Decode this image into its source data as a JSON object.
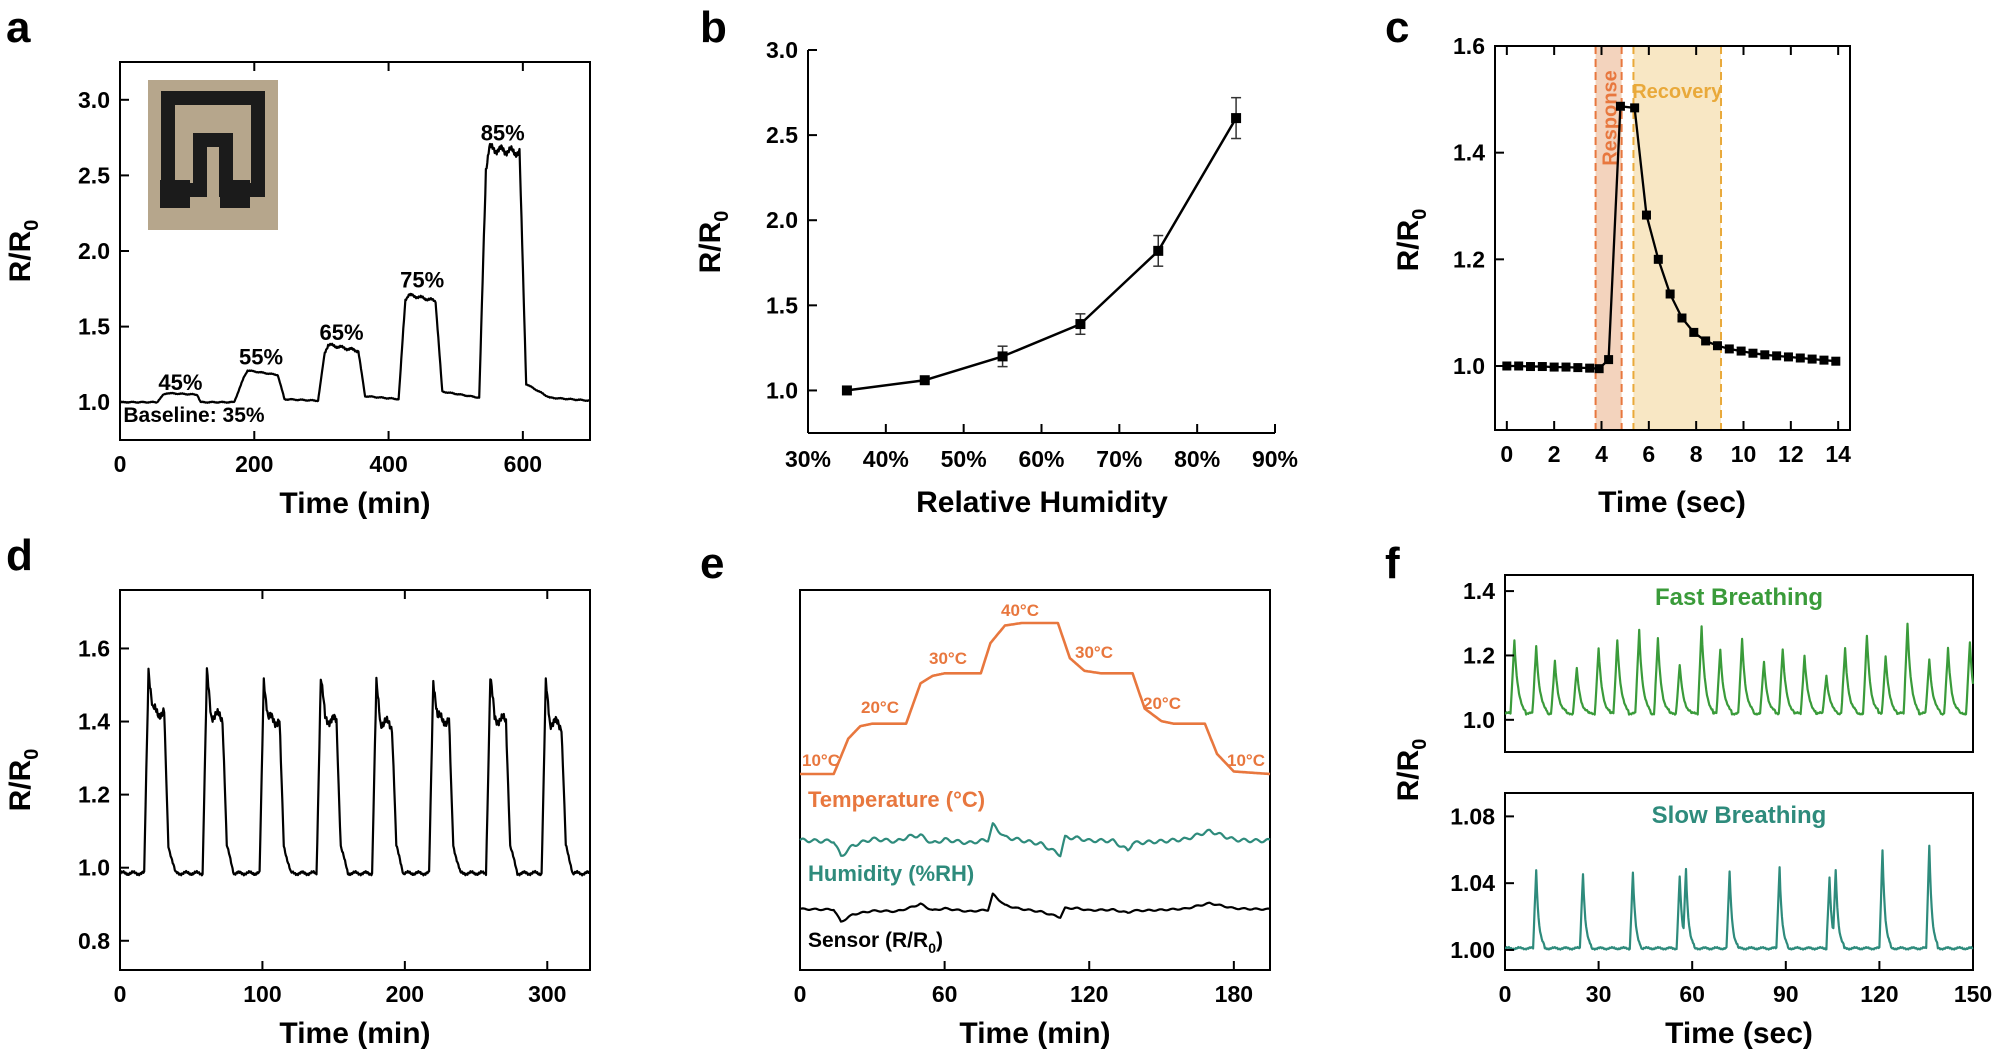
{
  "figure": {
    "panel_labels": [
      "a",
      "b",
      "c",
      "d",
      "e",
      "f"
    ]
  },
  "chart_data": [
    {
      "panel": "a",
      "type": "line",
      "xlabel": "Time (min)",
      "ylabel_main": "R/R",
      "ylabel_sub": "0",
      "xlim": [
        0,
        700
      ],
      "ylim": [
        0.75,
        3.25
      ],
      "xticks": [
        0,
        200,
        400,
        600
      ],
      "yticks": [
        1.0,
        1.5,
        2.0,
        2.5,
        3.0
      ],
      "series": [
        {
          "name": "R/R0",
          "x": [
            0,
            55,
            65,
            70,
            115,
            120,
            170,
            185,
            190,
            235,
            245,
            295,
            305,
            310,
            355,
            365,
            415,
            425,
            430,
            470,
            480,
            535,
            545,
            550,
            595,
            605,
            640,
            700
          ],
          "y": [
            1.0,
            1.0,
            1.05,
            1.06,
            1.05,
            1.0,
            1.0,
            1.17,
            1.21,
            1.18,
            1.02,
            1.01,
            1.33,
            1.38,
            1.34,
            1.04,
            1.02,
            1.68,
            1.71,
            1.67,
            1.07,
            1.03,
            2.55,
            2.68,
            2.65,
            1.12,
            1.03,
            1.01
          ]
        }
      ],
      "annotations": [
        {
          "text": "45%",
          "x": 90,
          "y": 1.08
        },
        {
          "text": "55%",
          "x": 210,
          "y": 1.25
        },
        {
          "text": "65%",
          "x": 330,
          "y": 1.41
        },
        {
          "text": "75%",
          "x": 450,
          "y": 1.76
        },
        {
          "text": "85%",
          "x": 570,
          "y": 2.73
        },
        {
          "text": "Baseline: 35%",
          "x": 5,
          "y": 0.87
        }
      ],
      "inset": "photo of black serpentine printed sensor on paper"
    },
    {
      "panel": "b",
      "type": "line",
      "xlabel": "Relative Humidity",
      "ylabel_main": "R/R",
      "ylabel_sub": "0",
      "xlim": [
        30,
        90
      ],
      "ylim": [
        0.75,
        3.0
      ],
      "xtick_labels": [
        "30%",
        "40%",
        "50%",
        "60%",
        "70%",
        "80%",
        "90%"
      ],
      "yticks": [
        1.0,
        1.5,
        2.0,
        2.5,
        3.0
      ],
      "series": [
        {
          "name": "R/R0",
          "x": [
            35,
            45,
            55,
            65,
            75,
            85
          ],
          "y": [
            1.0,
            1.06,
            1.2,
            1.39,
            1.82,
            2.6
          ],
          "error": [
            0,
            0,
            0.06,
            0.06,
            0.09,
            0.12
          ]
        }
      ]
    },
    {
      "panel": "c",
      "type": "line",
      "xlabel": "Time (sec)",
      "ylabel_main": "R/R",
      "ylabel_sub": "0",
      "xlim": [
        -0.5,
        14.5
      ],
      "ylim": [
        0.88,
        1.6
      ],
      "xticks": [
        0,
        2,
        4,
        6,
        8,
        10,
        12,
        14
      ],
      "yticks": [
        1.0,
        1.2,
        1.4,
        1.6
      ],
      "series": [
        {
          "name": "R/R0",
          "x": [
            0,
            0.5,
            1.0,
            1.5,
            2.0,
            2.5,
            3.0,
            3.5,
            3.9,
            4.3,
            4.8,
            5.4,
            5.9,
            6.4,
            6.9,
            7.4,
            7.9,
            8.4,
            8.9,
            9.4,
            9.9,
            10.4,
            10.9,
            11.4,
            11.9,
            12.4,
            12.9,
            13.4,
            13.9
          ],
          "y": [
            1.0,
            1.0,
            0.999,
            0.999,
            0.998,
            0.998,
            0.997,
            0.996,
            0.995,
            1.012,
            1.487,
            1.484,
            1.283,
            1.2,
            1.135,
            1.09,
            1.063,
            1.047,
            1.038,
            1.032,
            1.028,
            1.024,
            1.021,
            1.019,
            1.017,
            1.015,
            1.013,
            1.011,
            1.009
          ]
        }
      ],
      "regions": [
        {
          "label": "Response",
          "x0": 3.75,
          "x1": 4.85,
          "color": "#e8773e",
          "fill": "#f3d3bd"
        },
        {
          "label": "Recovery",
          "x0": 5.35,
          "x1": 9.05,
          "color": "#e9a93a",
          "fill": "#f8e7c4"
        }
      ]
    },
    {
      "panel": "d",
      "type": "line",
      "xlabel": "Time (min)",
      "ylabel_main": "R/R",
      "ylabel_sub": "0",
      "xlim": [
        0,
        330
      ],
      "ylim": [
        0.72,
        1.76
      ],
      "xticks": [
        0,
        100,
        200,
        300
      ],
      "yticks": [
        0.8,
        1.0,
        1.2,
        1.4,
        1.6
      ],
      "cycles": {
        "start_times": [
          17,
          58,
          98,
          138,
          177,
          217,
          257,
          296
        ],
        "peaks": [
          1.55,
          1.53,
          1.52,
          1.52,
          1.5,
          1.52,
          1.52,
          1.5
        ],
        "plateau": [
          1.43,
          1.42,
          1.41,
          1.41,
          1.4,
          1.41,
          1.41,
          1.4
        ],
        "baseline": 0.985
      }
    },
    {
      "panel": "e",
      "type": "line",
      "xlabel": "Time (min)",
      "xlim": [
        0,
        195
      ],
      "xticks": [
        0,
        60,
        120,
        180
      ],
      "series": [
        {
          "name": "Temperature (°C)",
          "color": "#e8773e",
          "x": [
            0,
            14,
            20,
            25,
            30,
            44,
            50,
            55,
            60,
            75,
            79,
            85,
            92,
            107,
            112,
            118,
            125,
            138,
            143,
            150,
            155,
            168,
            173,
            180,
            195
          ],
          "y": [
            10,
            10,
            17,
            19.5,
            20,
            20,
            28,
            29.5,
            30,
            30,
            36,
            39.5,
            40,
            40,
            33,
            30.5,
            30,
            30,
            23,
            20.5,
            20,
            20,
            14,
            10.5,
            10
          ]
        },
        {
          "name": "Humidity (%RH)",
          "color": "#2e8b7c",
          "x": [
            0,
            14,
            17,
            22,
            30,
            40,
            45,
            50,
            55,
            60,
            70,
            78,
            80,
            85,
            90,
            100,
            108,
            110,
            115,
            120,
            130,
            136,
            138,
            145,
            160,
            170,
            180,
            195
          ],
          "y": [
            0,
            0,
            -3.5,
            -1.2,
            0,
            -0.5,
            0.8,
            1.2,
            -0.5,
            0.3,
            -0.8,
            -0.2,
            3.2,
            0.5,
            0.2,
            -0.6,
            -3.2,
            0.6,
            0.3,
            -0.4,
            -0.3,
            -2.2,
            -0.5,
            -0.2,
            0,
            1.8,
            0.2,
            0
          ]
        },
        {
          "name": "Sensor (R/R0)",
          "color": "#000000",
          "x": [
            0,
            14,
            17,
            22,
            30,
            40,
            45,
            50,
            55,
            60,
            70,
            78,
            80,
            85,
            90,
            100,
            108,
            110,
            115,
            120,
            130,
            136,
            138,
            145,
            160,
            170,
            180,
            195
          ],
          "y": [
            0,
            0,
            -2.8,
            -1.2,
            -0.5,
            -0.6,
            0.2,
            1.2,
            -0.2,
            0.2,
            -0.6,
            -0.3,
            3.2,
            0.8,
            0.2,
            -0.5,
            -1.8,
            0.2,
            0.1,
            -0.4,
            -0.2,
            -0.8,
            -0.3,
            -0.2,
            0,
            1.2,
            0.2,
            0
          ]
        }
      ],
      "temperature_labels": [
        "10°C",
        "20°C",
        "30°C",
        "40°C",
        "30°C",
        "20°C",
        "10°C"
      ],
      "legend_labels": {
        "temperature": "Temperature (",
        "temperature_unit": "°C)",
        "humidity": "Humidity (%RH)",
        "sensor": "Sensor (R/R",
        "sensor_sub": "0",
        "sensor_end": ")"
      }
    },
    {
      "panel": "f",
      "type": "line",
      "xlabel": "Time (sec)",
      "ylabel_main": "R/R",
      "ylabel_sub": "0",
      "xlim": [
        0,
        150
      ],
      "xticks": [
        0,
        30,
        60,
        90,
        120,
        150
      ],
      "subplots": [
        {
          "title": "Fast Breathing",
          "color": "#3a9b3a",
          "ylim": [
            0.9,
            1.45
          ],
          "yticks": [
            1.0,
            1.2,
            1.4
          ],
          "baseline": 1.02,
          "peaks_t": [
            3,
            10,
            16,
            23,
            30,
            36,
            43,
            49,
            56,
            63,
            69,
            76,
            83,
            89,
            96,
            103,
            109,
            116,
            122,
            129,
            136,
            142,
            149
          ],
          "peaks_v": [
            1.25,
            1.23,
            1.18,
            1.16,
            1.22,
            1.25,
            1.28,
            1.25,
            1.17,
            1.29,
            1.22,
            1.25,
            1.18,
            1.22,
            1.2,
            1.14,
            1.22,
            1.26,
            1.2,
            1.3,
            1.19,
            1.22,
            1.24
          ]
        },
        {
          "title": "Slow Breathing",
          "color": "#2e8b7c",
          "ylim": [
            0.988,
            1.094
          ],
          "yticks": [
            1.0,
            1.04,
            1.08
          ],
          "baseline": 1.001,
          "peaks_t": [
            10,
            25,
            41,
            56,
            58,
            72,
            88,
            104,
            106,
            121,
            136
          ],
          "peaks_v": [
            1.048,
            1.046,
            1.046,
            1.044,
            1.049,
            1.047,
            1.05,
            1.043,
            1.048,
            1.06,
            1.063
          ]
        }
      ]
    }
  ]
}
